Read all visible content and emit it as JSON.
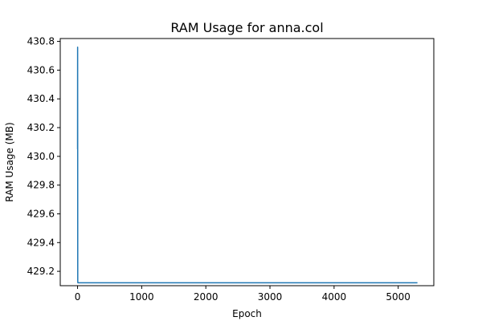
{
  "chart_data": {
    "type": "line",
    "title": "RAM Usage for anna.col",
    "xlabel": "Epoch",
    "ylabel": "RAM Usage (MB)",
    "xlim": [
      -270,
      5555
    ],
    "ylim": [
      429.1,
      430.82
    ],
    "x_ticks": [
      0,
      1000,
      2000,
      3000,
      4000,
      5000
    ],
    "x_tick_labels": [
      "0",
      "1000",
      "2000",
      "3000",
      "4000",
      "5000"
    ],
    "y_ticks": [
      429.2,
      429.4,
      429.6,
      429.8,
      430.0,
      430.2,
      430.4,
      430.6,
      430.8
    ],
    "y_tick_labels": [
      "429.2",
      "429.4",
      "429.6",
      "429.8",
      "430.0",
      "430.2",
      "430.4",
      "430.6",
      "430.8"
    ],
    "grid": false,
    "legend": false,
    "series": [
      {
        "color": "#1f77b4",
        "x": [
          0,
          1,
          2,
          3,
          5,
          10,
          50,
          100,
          1000,
          2000,
          3000,
          4000,
          5000,
          5300
        ],
        "y": [
          430.05,
          430.76,
          430.05,
          429.13,
          429.12,
          429.12,
          429.12,
          429.12,
          429.12,
          429.12,
          429.12,
          429.12,
          429.12,
          429.12
        ]
      }
    ]
  }
}
